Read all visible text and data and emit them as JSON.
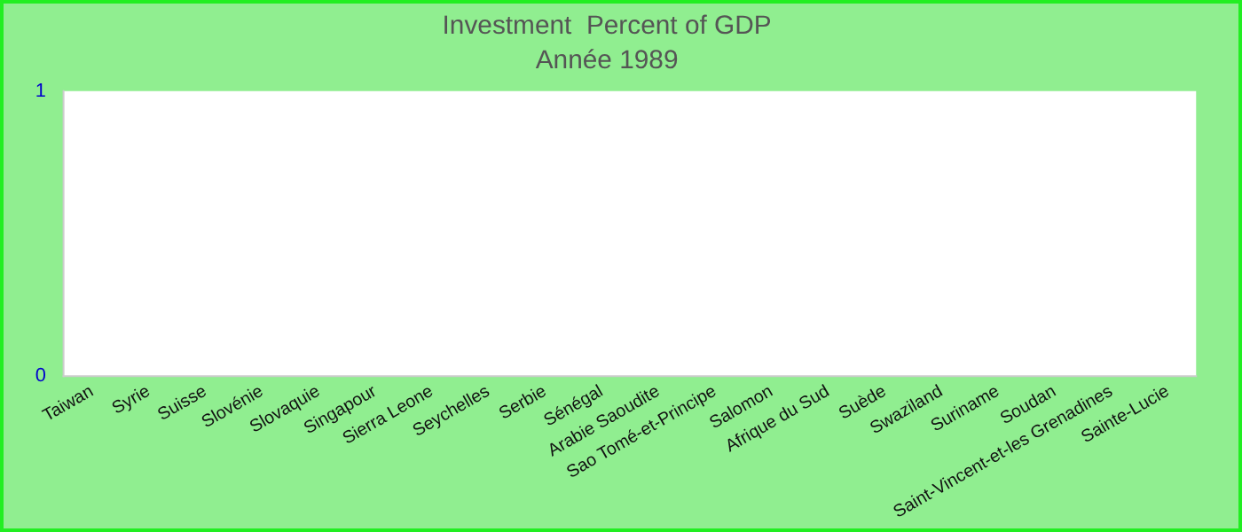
{
  "chart_data": {
    "type": "bar",
    "title": "Investment  Percent of GDP",
    "subtitle": "Année 1989",
    "categories": [
      "Taiwan",
      "Syrie",
      "Suisse",
      "Slovénie",
      "Slovaquie",
      "Singapour",
      "Sierra Leone",
      "Seychelles",
      "Serbie",
      "Sénégal",
      "Arabie Saoudite",
      "Sao Tomé-et-Principe",
      "Salomon",
      "Afrique du Sud",
      "Suède",
      "Swaziland",
      "Suriname",
      "Soudan",
      "Saint-Vincent-et-les Grenadines",
      "Sainte-Lucie"
    ],
    "values": [
      null,
      null,
      null,
      null,
      null,
      null,
      null,
      null,
      null,
      null,
      null,
      null,
      null,
      null,
      null,
      null,
      null,
      null,
      null,
      null
    ],
    "ylim": [
      0,
      1
    ],
    "yticks": [
      0,
      1
    ],
    "grid": false,
    "legend": false
  }
}
